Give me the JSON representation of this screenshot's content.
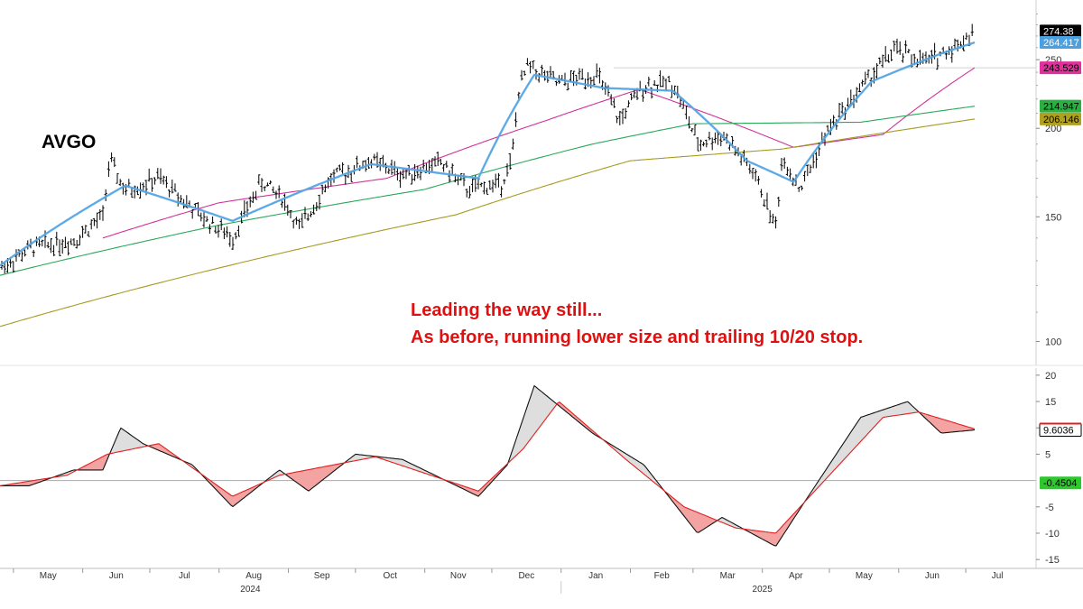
{
  "chart_data": [
    {
      "type": "line",
      "title": "AVGO",
      "subtype": "ohlc-bars-with-moving-averages",
      "y_scale": "log",
      "ylim": [
        95,
        300
      ],
      "y_ticks": [
        100,
        150,
        200,
        250
      ],
      "x_axis": {
        "months": [
          "May",
          "Jun",
          "Jul",
          "Aug",
          "Sep",
          "Oct",
          "Nov",
          "Dec",
          "Jan",
          "Feb",
          "Mar",
          "Apr",
          "May",
          "Jun",
          "Jul"
        ],
        "years": [
          "2024",
          "2025"
        ]
      },
      "annotations": [
        "Leading the way still...",
        "As before, running lower size and trailing 10/20 stop."
      ],
      "price_path": [
        {
          "x": "2024-04-25",
          "y": 127
        },
        {
          "x": "2024-05-10",
          "y": 136
        },
        {
          "x": "2024-05-28",
          "y": 139
        },
        {
          "x": "2024-06-10",
          "y": 150
        },
        {
          "x": "2024-06-13",
          "y": 180
        },
        {
          "x": "2024-06-20",
          "y": 163
        },
        {
          "x": "2024-07-05",
          "y": 170
        },
        {
          "x": "2024-07-24",
          "y": 150
        },
        {
          "x": "2024-08-07",
          "y": 140
        },
        {
          "x": "2024-08-20",
          "y": 168
        },
        {
          "x": "2024-08-29",
          "y": 160
        },
        {
          "x": "2024-09-06",
          "y": 144
        },
        {
          "x": "2024-09-20",
          "y": 170
        },
        {
          "x": "2024-10-08",
          "y": 180
        },
        {
          "x": "2024-10-22",
          "y": 172
        },
        {
          "x": "2024-11-08",
          "y": 179
        },
        {
          "x": "2024-11-20",
          "y": 164
        },
        {
          "x": "2024-12-05",
          "y": 167
        },
        {
          "x": "2024-12-10",
          "y": 180
        },
        {
          "x": "2024-12-13",
          "y": 225
        },
        {
          "x": "2024-12-17",
          "y": 245
        },
        {
          "x": "2024-12-31",
          "y": 231
        },
        {
          "x": "2025-01-10",
          "y": 236
        },
        {
          "x": "2025-01-17",
          "y": 238
        },
        {
          "x": "2025-01-27",
          "y": 205
        },
        {
          "x": "2025-02-07",
          "y": 230
        },
        {
          "x": "2025-02-20",
          "y": 232
        },
        {
          "x": "2025-03-03",
          "y": 190
        },
        {
          "x": "2025-03-14",
          "y": 196
        },
        {
          "x": "2025-03-28",
          "y": 173
        },
        {
          "x": "2025-04-07",
          "y": 145
        },
        {
          "x": "2025-04-10",
          "y": 182
        },
        {
          "x": "2025-04-18",
          "y": 164
        },
        {
          "x": "2025-05-01",
          "y": 200
        },
        {
          "x": "2025-05-15",
          "y": 228
        },
        {
          "x": "2025-05-30",
          "y": 258
        },
        {
          "x": "2025-06-13",
          "y": 248
        },
        {
          "x": "2025-06-27",
          "y": 262
        },
        {
          "x": "2025-07-05",
          "y": 274.38
        }
      ],
      "moving_average_paths": [
        {
          "color": "#4aa0e0",
          "points": [
            {
              "x": "2024-04-25",
              "y": 128
            },
            {
              "x": "2024-06-20",
              "y": 166
            },
            {
              "x": "2024-08-07",
              "y": 148
            },
            {
              "x": "2024-10-08",
              "y": 178
            },
            {
              "x": "2024-11-25",
              "y": 170
            },
            {
              "x": "2024-12-20",
              "y": 238
            },
            {
              "x": "2025-01-20",
              "y": 228
            },
            {
              "x": "2025-02-20",
              "y": 226
            },
            {
              "x": "2025-03-25",
              "y": 180
            },
            {
              "x": "2025-04-15",
              "y": 168
            },
            {
              "x": "2025-05-20",
              "y": 233
            },
            {
              "x": "2025-06-20",
              "y": 255
            },
            {
              "x": "2025-07-05",
              "y": 264.417
            }
          ]
        },
        {
          "color": "#d0349a",
          "points": [
            {
              "x": "2024-06-10",
              "y": 140
            },
            {
              "x": "2024-08-01",
              "y": 157
            },
            {
              "x": "2024-10-15",
              "y": 170
            },
            {
              "x": "2024-12-25",
              "y": 205
            },
            {
              "x": "2025-02-05",
              "y": 227
            },
            {
              "x": "2025-04-15",
              "y": 188
            },
            {
              "x": "2025-05-25",
              "y": 196
            },
            {
              "x": "2025-07-05",
              "y": 243.529
            }
          ]
        },
        {
          "color": "#2aa85a",
          "points": [
            {
              "x": "2024-04-25",
              "y": 124
            },
            {
              "x": "2024-08-01",
              "y": 146
            },
            {
              "x": "2024-11-01",
              "y": 164
            },
            {
              "x": "2025-01-15",
              "y": 190
            },
            {
              "x": "2025-03-01",
              "y": 203
            },
            {
              "x": "2025-05-15",
              "y": 204
            },
            {
              "x": "2025-07-05",
              "y": 214.947
            }
          ]
        },
        {
          "color": "#a69a20",
          "points": [
            {
              "x": "2024-04-25",
              "y": 105
            },
            {
              "x": "2024-08-01",
              "y": 127
            },
            {
              "x": "2024-11-15",
              "y": 151
            },
            {
              "x": "2025-02-01",
              "y": 180
            },
            {
              "x": "2025-04-10",
              "y": 187
            },
            {
              "x": "2025-07-05",
              "y": 206.146
            }
          ]
        }
      ],
      "price_labels": [
        {
          "value": "274.38",
          "color": "#000000"
        },
        {
          "value": "264.417",
          "color": "#4aa0e0"
        },
        {
          "value": "243.529",
          "color": "#e0309a"
        },
        {
          "value": "214.947",
          "color": "#2ab040"
        },
        {
          "value": "206.146",
          "color": "#b0a020"
        }
      ],
      "reference_line": 243.529
    },
    {
      "type": "line",
      "subtype": "oscillator",
      "ylim": [
        -16,
        21
      ],
      "y_ticks": [
        20,
        15,
        10,
        5,
        -5,
        -10,
        -15
      ],
      "zero_line": 0,
      "oscillator_path": [
        {
          "x": "2024-04-25",
          "y": -1
        },
        {
          "x": "2024-05-08",
          "y": -1
        },
        {
          "x": "2024-05-28",
          "y": 2
        },
        {
          "x": "2024-06-10",
          "y": 2
        },
        {
          "x": "2024-06-18",
          "y": 10
        },
        {
          "x": "2024-06-28",
          "y": 7
        },
        {
          "x": "2024-07-20",
          "y": 3
        },
        {
          "x": "2024-08-07",
          "y": -5
        },
        {
          "x": "2024-08-28",
          "y": 2
        },
        {
          "x": "2024-09-10",
          "y": -2
        },
        {
          "x": "2024-10-01",
          "y": 5
        },
        {
          "x": "2024-10-22",
          "y": 4
        },
        {
          "x": "2024-11-25",
          "y": -3
        },
        {
          "x": "2024-12-08",
          "y": 3
        },
        {
          "x": "2024-12-20",
          "y": 18
        },
        {
          "x": "2025-01-15",
          "y": 9
        },
        {
          "x": "2025-02-07",
          "y": 3
        },
        {
          "x": "2025-03-03",
          "y": -10
        },
        {
          "x": "2025-03-14",
          "y": -7
        },
        {
          "x": "2025-04-07",
          "y": -12.5
        },
        {
          "x": "2025-04-20",
          "y": -4
        },
        {
          "x": "2025-05-15",
          "y": 12
        },
        {
          "x": "2025-06-05",
          "y": 15
        },
        {
          "x": "2025-06-20",
          "y": 9
        },
        {
          "x": "2025-07-05",
          "y": 9.6036
        }
      ],
      "signal_path": [
        {
          "x": "2024-04-25",
          "y": -1
        },
        {
          "x": "2024-05-25",
          "y": 1
        },
        {
          "x": "2024-06-12",
          "y": 5
        },
        {
          "x": "2024-07-05",
          "y": 7
        },
        {
          "x": "2024-08-07",
          "y": -3
        },
        {
          "x": "2024-08-28",
          "y": 1
        },
        {
          "x": "2024-10-10",
          "y": 4.5
        },
        {
          "x": "2024-11-25",
          "y": -2
        },
        {
          "x": "2024-12-15",
          "y": 6
        },
        {
          "x": "2024-12-31",
          "y": 15
        },
        {
          "x": "2025-01-30",
          "y": 4
        },
        {
          "x": "2025-02-25",
          "y": -5
        },
        {
          "x": "2025-03-20",
          "y": -9
        },
        {
          "x": "2025-04-07",
          "y": -10
        },
        {
          "x": "2025-05-25",
          "y": 12
        },
        {
          "x": "2025-06-10",
          "y": 13
        },
        {
          "x": "2025-07-05",
          "y": 9.8
        }
      ],
      "value_labels": [
        {
          "value": "9.6036",
          "color": "#000000"
        },
        {
          "value": "-0.4504",
          "color": "#2ec82e"
        }
      ]
    }
  ]
}
